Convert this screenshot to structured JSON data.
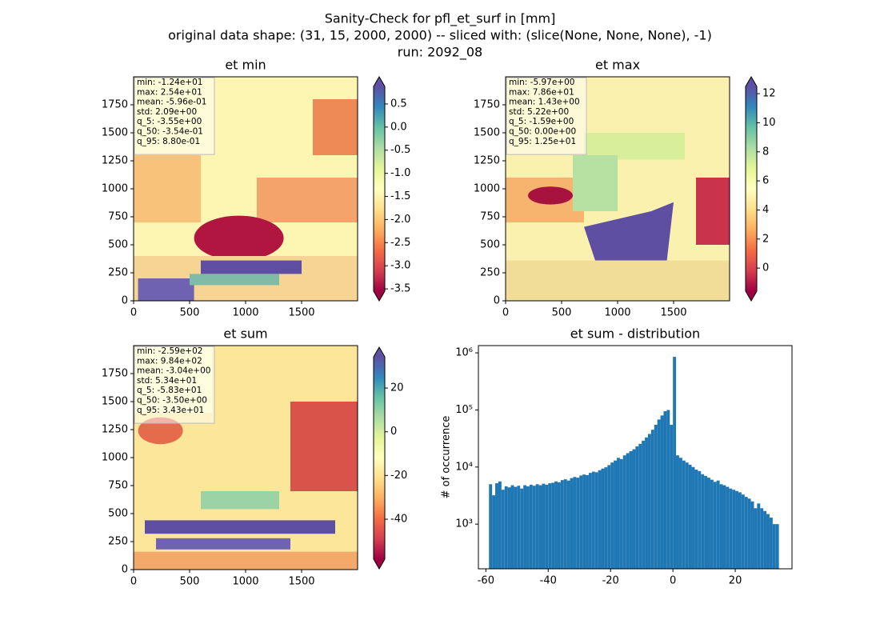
{
  "chart_data": [
    {
      "type": "heatmap",
      "title": "et min",
      "stats": [
        "min: -1.24e+01",
        "max: 2.54e+01",
        "mean: -5.96e-01",
        "std: 2.09e+00",
        "q_5: -3.55e+00",
        "q_50: -3.54e-01",
        "q_95: 8.80e-01"
      ],
      "xlim": [
        0,
        2000
      ],
      "ylim": [
        0,
        2000
      ],
      "xticks": [
        0,
        500,
        1000,
        1500
      ],
      "yticks": [
        0,
        250,
        500,
        750,
        1000,
        1250,
        1500,
        1750
      ],
      "colorbar": {
        "lim": [
          -3.55,
          0.88
        ],
        "ticks": [
          0.5,
          {
            "value": 0,
            "label": "0.0"
          },
          -0.5,
          {
            "value": -1,
            "label": "-1.0"
          },
          -1.5,
          {
            "value": -2,
            "label": "-2.0"
          },
          -2.5,
          {
            "value": -3,
            "label": "-3.0"
          },
          -3.5
        ]
      }
    },
    {
      "type": "heatmap",
      "title": "et max",
      "stats": [
        "min: -5.97e+00",
        "max: 7.86e+01",
        "mean: 1.43e+00",
        "std: 5.22e+00",
        "q_5: -1.59e+00",
        "q_50: 0.00e+00",
        "q_95: 1.25e+01"
      ],
      "xlim": [
        0,
        2000
      ],
      "ylim": [
        0,
        2000
      ],
      "xticks": [
        0,
        500,
        1000,
        1500
      ],
      "yticks": [
        0,
        250,
        500,
        750,
        1000,
        1250,
        1500,
        1750
      ],
      "colorbar": {
        "lim": [
          -1.59,
          12.5
        ],
        "ticks": [
          0,
          2,
          4,
          6,
          8,
          10,
          12
        ]
      }
    },
    {
      "type": "heatmap",
      "title": "et sum",
      "stats": [
        "min: -2.59e+02",
        "max: 9.84e+02",
        "mean: -3.04e+00",
        "std: 5.34e+01",
        "q_5: -5.83e+01",
        "q_50: -3.50e+00",
        "q_95: 3.43e+01"
      ],
      "xlim": [
        0,
        2000
      ],
      "ylim": [
        0,
        2000
      ],
      "xticks": [
        0,
        500,
        1000,
        1500
      ],
      "yticks": [
        0,
        250,
        500,
        750,
        1000,
        1250,
        1500,
        1750
      ],
      "colorbar": {
        "lim": [
          -58.3,
          34.3
        ],
        "ticks": [
          -40,
          -20,
          0,
          20
        ]
      }
    },
    {
      "type": "histogram",
      "title": "et sum - distribution",
      "y_label": "# of occurrence",
      "color": "#1f77b4",
      "yscale": "log",
      "bins": [
        -59,
        -58,
        -57,
        -56,
        -55,
        -54,
        -53,
        -52,
        -51,
        -50,
        -49,
        -48,
        -47,
        -46,
        -45,
        -44,
        -43,
        -42,
        -41,
        -40,
        -39,
        -38,
        -37,
        -36,
        -35,
        -34,
        -33,
        -32,
        -31,
        -30,
        -29,
        -28,
        -27,
        -26,
        -25,
        -24,
        -23,
        -22,
        -21,
        -20,
        -19,
        -18,
        -17,
        -16,
        -15,
        -14,
        -13,
        -12,
        -11,
        -10,
        -9,
        -8,
        -7,
        -6,
        -5,
        -4,
        -3,
        -2,
        -1,
        0,
        1,
        2,
        3,
        4,
        5,
        6,
        7,
        8,
        9,
        10,
        11,
        12,
        13,
        14,
        15,
        16,
        17,
        18,
        19,
        20,
        21,
        22,
        23,
        24,
        25,
        26,
        27,
        28,
        29,
        30,
        31,
        32,
        33,
        34
      ],
      "counts": [
        5000,
        3200,
        5200,
        5600,
        4000,
        4600,
        4400,
        4800,
        4500,
        4700,
        4200,
        4800,
        4600,
        4900,
        4700,
        5000,
        4800,
        5100,
        4900,
        5200,
        5300,
        5600,
        5400,
        5900,
        6100,
        5800,
        6400,
        6700,
        6500,
        7100,
        7400,
        7200,
        7900,
        8300,
        8100,
        8800,
        9400,
        9900,
        10800,
        12000,
        13000,
        14500,
        13800,
        16000,
        17500,
        19000,
        20500,
        23000,
        25500,
        29000,
        33000,
        38000,
        45000,
        55000,
        68000,
        80000,
        95000,
        100000,
        55000,
        850000,
        16000,
        14500,
        13000,
        12000,
        11000,
        10000,
        9000,
        8500,
        7500,
        7000,
        6500,
        6000,
        5500,
        5800,
        5000,
        4800,
        4500,
        4200,
        4000,
        3800,
        3600,
        3300,
        3000,
        2800,
        2500,
        1900,
        2300,
        1900,
        1700,
        1500,
        1300,
        1000,
        1000
      ],
      "xlim": [
        -62.4,
        38.2
      ],
      "ylim": [
        165,
        1340000
      ],
      "xticks": [
        -60,
        -40,
        -20,
        0,
        20
      ],
      "yticks": [
        {
          "value": 1000,
          "label": "10³"
        },
        {
          "value": 10000,
          "label": "10⁴"
        },
        {
          "value": 100000,
          "label": "10⁵"
        },
        {
          "value": 1000000,
          "label": "10⁶"
        }
      ]
    }
  ],
  "suptitle": [
    "Sanity-Check for pfl_et_surf in [mm]",
    "original data shape: (31, 15, 2000, 2000) -- sliced with: (slice(None, None, None), -1)",
    "run: 2092_08"
  ]
}
